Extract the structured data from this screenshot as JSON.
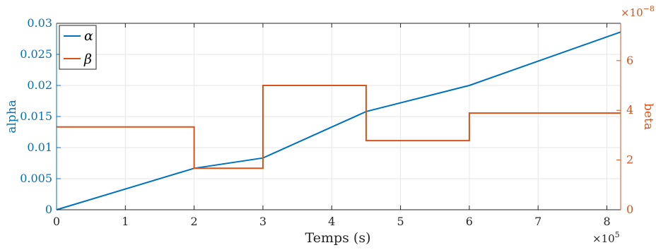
{
  "chart_data": {
    "type": "line",
    "xlabel": "Temps (s)",
    "x_exponent_label": "×10",
    "x_exponent": "5",
    "xlim": [
      0,
      820000
    ],
    "xticks": [
      0,
      100000,
      200000,
      300000,
      400000,
      500000,
      600000,
      700000,
      800000
    ],
    "xtick_labels": [
      "0",
      "1",
      "2",
      "3",
      "4",
      "5",
      "6",
      "7",
      "8"
    ],
    "grid": true,
    "legend_placement": "top-left",
    "left_axis": {
      "label": "alpha",
      "color": "#0072BD",
      "ylim": [
        0,
        0.03
      ],
      "ticks": [
        0,
        0.005,
        0.01,
        0.015,
        0.02,
        0.025,
        0.03
      ],
      "tick_labels": [
        "0",
        "0.005",
        "0.01",
        "0.015",
        "0.02",
        "0.025",
        "0.03"
      ]
    },
    "right_axis": {
      "label": "beta",
      "color": "#D95319",
      "exponent_label": "×10",
      "exponent": "−8",
      "ylim": [
        0,
        7.5
      ],
      "ticks": [
        0,
        2,
        4,
        6
      ],
      "tick_labels": [
        "0",
        "2",
        "4",
        "6"
      ]
    },
    "series": [
      {
        "name": "α",
        "axis": "left",
        "color": "#0072BD",
        "x": [
          0,
          200000,
          300000,
          450000,
          600000,
          820000
        ],
        "y": [
          0,
          0.00667,
          0.00833,
          0.0158,
          0.02,
          0.0286
        ]
      },
      {
        "name": "β",
        "axis": "right",
        "color": "#D95319",
        "step": true,
        "x": [
          0,
          200000,
          200000,
          300000,
          300000,
          450000,
          450000,
          600000,
          600000,
          820000
        ],
        "y": [
          3.33,
          3.33,
          1.67,
          1.67,
          5.0,
          5.0,
          2.78,
          2.78,
          3.89,
          3.89
        ]
      }
    ]
  }
}
